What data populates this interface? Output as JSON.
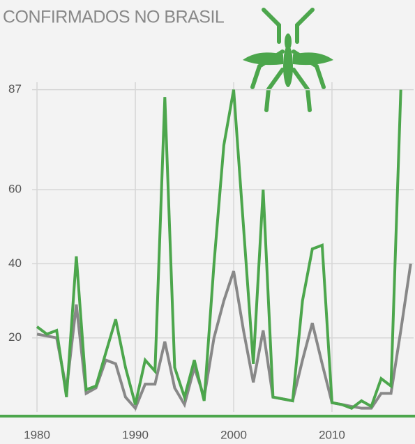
{
  "chart_data": {
    "type": "line",
    "title": "CONFIRMADOS NO BRASIL",
    "x": [
      1980,
      1981,
      1982,
      1983,
      1984,
      1985,
      1986,
      1987,
      1988,
      1989,
      1990,
      1991,
      1992,
      1993,
      1994,
      1995,
      1996,
      1997,
      1998,
      1999,
      2000,
      2001,
      2002,
      2003,
      2004,
      2005,
      2006,
      2007,
      2008,
      2009,
      2010,
      2011,
      2012,
      2013,
      2014,
      2015,
      2016,
      2017,
      2018
    ],
    "series": [
      {
        "color": "#4ca64c",
        "values": [
          23,
          21,
          22,
          4,
          42,
          6,
          7,
          16,
          25,
          12,
          2,
          14,
          11,
          85,
          12,
          4,
          14,
          3,
          40,
          72,
          87,
          50,
          13,
          60,
          4,
          3.5,
          3,
          30,
          44,
          45,
          2.5,
          2,
          1,
          3,
          1.5,
          9,
          7,
          87,
          null
        ]
      },
      {
        "color": "#888888",
        "values": [
          21,
          20.5,
          20,
          6,
          29,
          5,
          6.5,
          14,
          13,
          4,
          1,
          7.5,
          7.5,
          19,
          6.5,
          2,
          12,
          4,
          20,
          30,
          38,
          22,
          8,
          22,
          4,
          3.5,
          3,
          14,
          24,
          13,
          2.5,
          2,
          1.5,
          1,
          1,
          5,
          5,
          22,
          40
        ]
      }
    ],
    "xlim": [
      1979.5,
      2018.3
    ],
    "xticks": [
      1980,
      1990,
      2000,
      2010
    ],
    "ylim": [
      0,
      89
    ],
    "yticks": [
      20,
      40,
      60,
      87
    ],
    "grid": true
  }
}
